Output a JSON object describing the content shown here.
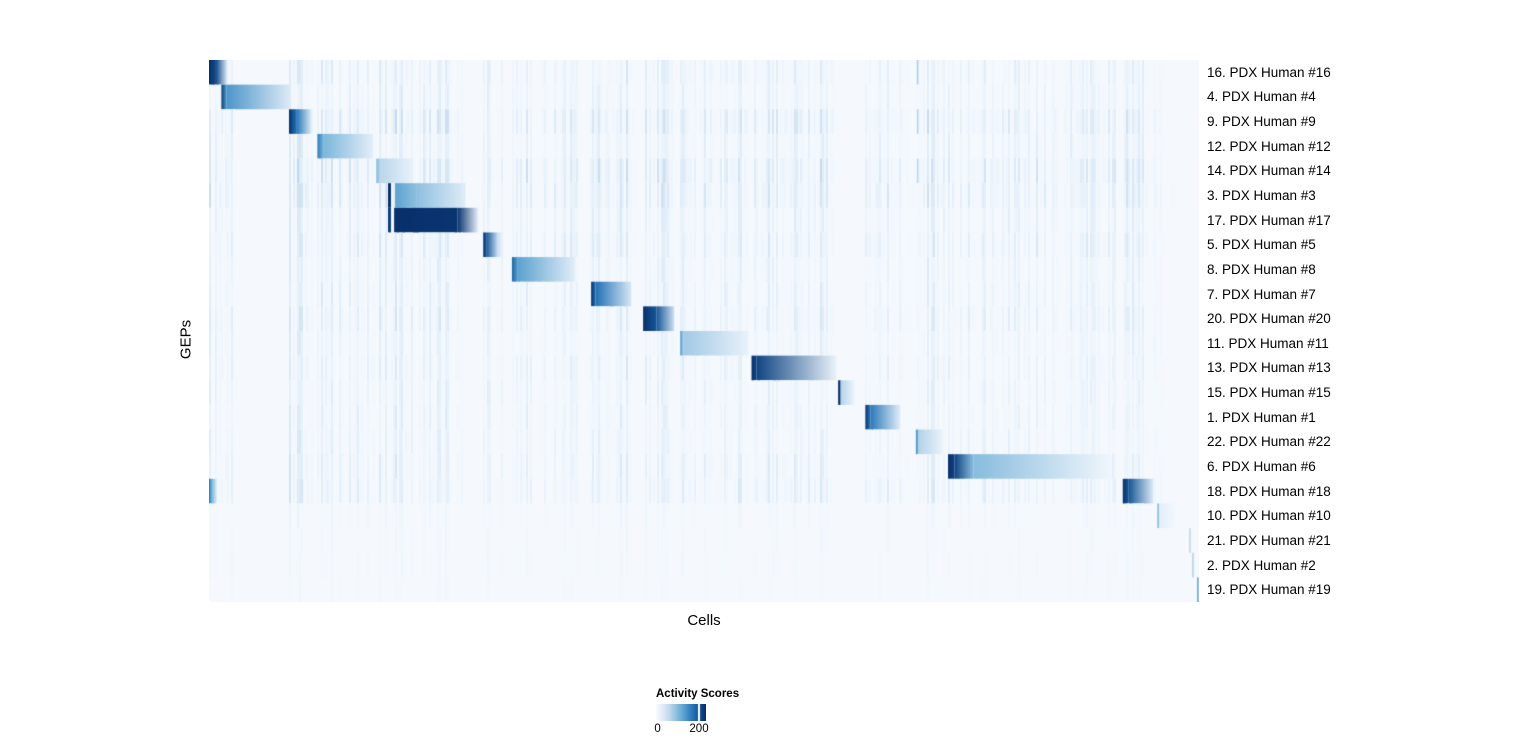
{
  "chart_data": {
    "type": "heatmap",
    "title": "",
    "xlabel": "Cells",
    "ylabel": "GEPs",
    "background": "#f5f9fd",
    "colormap": {
      "stops": [
        [
          0,
          "#f7fbff"
        ],
        [
          0.25,
          "#c6dbef"
        ],
        [
          0.5,
          "#6baed6"
        ],
        [
          0.75,
          "#2171b5"
        ],
        [
          1,
          "#08306b"
        ]
      ]
    },
    "legend": {
      "title": "Activity Scores",
      "min_label": "0",
      "tick_label": "200",
      "tick_frac": 0.84,
      "value_range": [
        0,
        240
      ]
    },
    "rows": [
      {
        "label": "16. PDX Human #16",
        "noise": 0.35,
        "segments": [
          [
            0.0,
            0.007,
            1.0,
            0.9
          ],
          [
            0.007,
            0.019,
            0.9,
            0.05
          ],
          [
            0.715,
            0.7166,
            0.32,
            0.32
          ]
        ]
      },
      {
        "label": "4. PDX Human #4",
        "noise": 0.3,
        "segments": [
          [
            0.0125,
            0.0175,
            0.95,
            0.6
          ],
          [
            0.0175,
            0.083,
            0.6,
            0.12
          ]
        ]
      },
      {
        "label": "9. PDX Human #9",
        "noise": 0.55,
        "segments": [
          [
            0.0808,
            0.088,
            1.0,
            0.75
          ],
          [
            0.088,
            0.1035,
            0.75,
            0.12
          ],
          [
            0.715,
            0.7166,
            0.3,
            0.3
          ]
        ]
      },
      {
        "label": "12. PDX Human #12",
        "noise": 0.35,
        "segments": [
          [
            0.1095,
            0.116,
            0.7,
            0.45
          ],
          [
            0.116,
            0.1655,
            0.45,
            0.1
          ]
        ]
      },
      {
        "label": "14. PDX Human #14",
        "noise": 0.6,
        "segments": [
          [
            0.169,
            0.173,
            0.45,
            0.28
          ],
          [
            0.173,
            0.206,
            0.28,
            0.07
          ],
          [
            0.715,
            0.7166,
            0.28,
            0.28
          ]
        ]
      },
      {
        "label": "3. PDX Human #3",
        "noise": 0.55,
        "segments": [
          [
            0.1808,
            0.1838,
            1.0,
            1.0
          ],
          [
            0.188,
            0.21,
            0.55,
            0.4
          ],
          [
            0.21,
            0.259,
            0.4,
            0.12
          ]
        ]
      },
      {
        "label": "17. PDX Human #17",
        "noise": 0.35,
        "segments": [
          [
            0.1808,
            0.1838,
            0.95,
            0.95
          ],
          [
            0.187,
            0.251,
            1.0,
            0.98
          ],
          [
            0.251,
            0.272,
            0.98,
            0.08
          ]
        ]
      },
      {
        "label": "5. PDX Human #5",
        "noise": 0.45,
        "segments": [
          [
            0.277,
            0.28,
            1.0,
            0.85
          ],
          [
            0.28,
            0.2915,
            0.85,
            0.25
          ],
          [
            0.2915,
            0.296,
            0.25,
            0.05
          ]
        ]
      },
      {
        "label": "8. PDX Human #8",
        "noise": 0.3,
        "segments": [
          [
            0.306,
            0.312,
            0.8,
            0.55
          ],
          [
            0.312,
            0.37,
            0.55,
            0.1
          ]
        ]
      },
      {
        "label": "7. PDX Human #7",
        "noise": 0.35,
        "segments": [
          [
            0.386,
            0.3905,
            1.0,
            0.75
          ],
          [
            0.3905,
            0.4265,
            0.75,
            0.16
          ]
        ]
      },
      {
        "label": "20. PDX Human #20",
        "noise": 0.4,
        "segments": [
          [
            0.4385,
            0.452,
            1.0,
            0.85
          ],
          [
            0.452,
            0.47,
            0.85,
            0.2
          ]
        ]
      },
      {
        "label": "11. PDX Human #11",
        "noise": 0.3,
        "segments": [
          [
            0.476,
            0.479,
            0.6,
            0.35
          ],
          [
            0.479,
            0.545,
            0.35,
            0.07
          ]
        ]
      },
      {
        "label": "13. PDX Human #13",
        "noise": 0.35,
        "segments": [
          [
            0.548,
            0.553,
            1.0,
            0.92
          ],
          [
            0.553,
            0.634,
            0.92,
            0.06
          ]
        ]
      },
      {
        "label": "15. PDX Human #15",
        "noise": 0.3,
        "segments": [
          [
            0.6355,
            0.638,
            1.0,
            1.0
          ],
          [
            0.638,
            0.652,
            0.3,
            0.05
          ]
        ]
      },
      {
        "label": "1. PDX Human #1",
        "noise": 0.3,
        "segments": [
          [
            0.663,
            0.668,
            1.0,
            0.72
          ],
          [
            0.668,
            0.698,
            0.72,
            0.12
          ]
        ]
      },
      {
        "label": "22. PDX Human #22",
        "noise": 0.3,
        "segments": [
          [
            0.714,
            0.7168,
            0.62,
            0.45
          ],
          [
            0.7168,
            0.741,
            0.3,
            0.06
          ]
        ]
      },
      {
        "label": "6. PDX Human #6",
        "noise": 0.35,
        "segments": [
          [
            0.7465,
            0.753,
            1.0,
            0.93
          ],
          [
            0.753,
            0.772,
            0.93,
            0.42
          ],
          [
            0.772,
            0.912,
            0.42,
            0.03
          ]
        ]
      },
      {
        "label": "18. PDX Human #18",
        "noise": 0.4,
        "segments": [
          [
            0.0,
            0.003,
            0.72,
            0.45
          ],
          [
            0.003,
            0.0085,
            0.45,
            0.05
          ],
          [
            0.923,
            0.929,
            1.0,
            0.85
          ],
          [
            0.929,
            0.954,
            0.85,
            0.12
          ]
        ]
      },
      {
        "label": "10. PDX Human #10",
        "noise": 0.12,
        "segments": [
          [
            0.958,
            0.96,
            0.5,
            0.3
          ],
          [
            0.96,
            0.976,
            0.1,
            0.02
          ]
        ]
      },
      {
        "label": "21. PDX Human #21",
        "noise": 0.1,
        "segments": [
          [
            0.99,
            0.992,
            0.28,
            0.16
          ]
        ]
      },
      {
        "label": "2. PDX Human #2",
        "noise": 0.1,
        "segments": [
          [
            0.993,
            0.995,
            0.32,
            0.18
          ]
        ]
      },
      {
        "label": "19. PDX Human #19",
        "noise": 0.08,
        "segments": [
          [
            0.998,
            1.0,
            0.55,
            0.3
          ]
        ]
      }
    ],
    "noise_bands": [
      [
        0.0,
        0.025,
        0.55
      ],
      [
        0.081,
        0.105,
        0.65
      ],
      [
        0.109,
        0.167,
        0.5
      ],
      [
        0.17,
        0.208,
        0.6
      ],
      [
        0.21,
        0.26,
        0.55
      ],
      [
        0.277,
        0.297,
        0.5
      ],
      [
        0.306,
        0.372,
        0.5
      ],
      [
        0.385,
        0.428,
        0.6
      ],
      [
        0.438,
        0.471,
        0.5
      ],
      [
        0.476,
        0.546,
        0.45
      ],
      [
        0.548,
        0.637,
        0.5
      ],
      [
        0.663,
        0.7,
        0.4
      ],
      [
        0.7,
        0.713,
        0.25
      ],
      [
        0.713,
        0.743,
        0.55
      ],
      [
        0.746,
        0.915,
        0.4
      ],
      [
        0.922,
        0.957,
        0.55
      ],
      [
        0.957,
        0.99,
        0.15
      ]
    ]
  }
}
